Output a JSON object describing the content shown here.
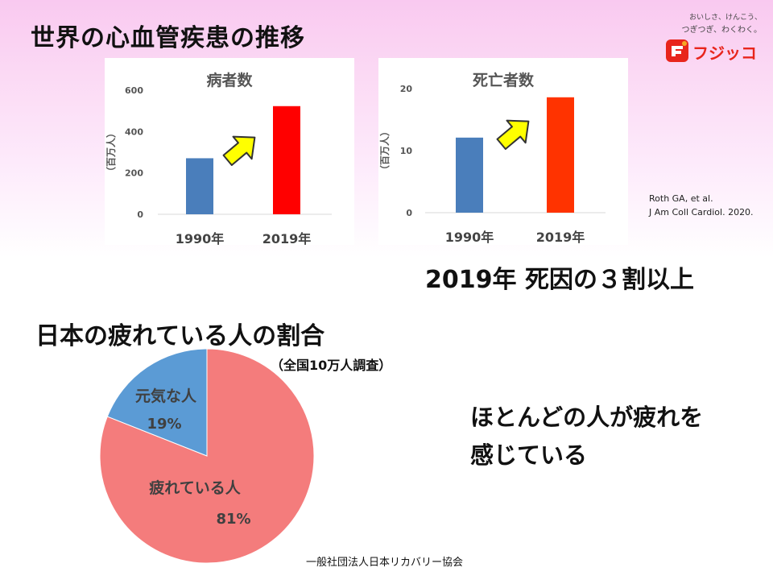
{
  "slide": {
    "title_top": "世界の心血管疾患の推移",
    "statement_top": "2019年  死因の３割以上",
    "title_bottom": "日本の疲れている人の割合",
    "survey_note": "（全国10万人調査）",
    "statement_bottom_line1": "ほとんどの人が疲れを",
    "statement_bottom_line2": "感じている",
    "source": "一般社団法人日本リカバリー協会"
  },
  "logo": {
    "tagline_line1": "おいしさ、けんこう、",
    "tagline_line2": "つぎつぎ、わくわく。",
    "brand": "フジッコ",
    "brand_color": "#e8251c"
  },
  "reference": {
    "line1": "Roth GA, et al.",
    "line2": "J Am Coll Cardiol. 2020."
  },
  "chart_data": [
    {
      "type": "bar",
      "title": "病者数",
      "ylabel": "（百万人）",
      "categories": [
        "1990年",
        "2019年"
      ],
      "values": [
        271,
        523
      ],
      "ylim": [
        0,
        600
      ],
      "yticks": [
        "0",
        "200",
        "400",
        "600"
      ],
      "ytick_values": [
        0,
        200,
        400,
        600
      ],
      "colors": [
        "#4a7ebb",
        "#ff0000"
      ],
      "grid": false,
      "annotation": "yellow-up-arrow"
    },
    {
      "type": "bar",
      "title": "死亡者数",
      "ylabel": "（百万人）",
      "categories": [
        "1990年",
        "2019年"
      ],
      "values": [
        12.1,
        18.6
      ],
      "ylim": [
        0,
        20
      ],
      "yticks": [
        "0",
        "10",
        "20"
      ],
      "ytick_values": [
        0,
        10,
        20
      ],
      "colors": [
        "#4a7ebb",
        "#ff3300"
      ],
      "grid": false,
      "annotation": "yellow-up-arrow"
    },
    {
      "type": "pie",
      "slices": [
        {
          "label": "疲れている人",
          "value": 81,
          "value_label": "81%",
          "color": "#f47c7c"
        },
        {
          "label": "元気な人",
          "value": 19,
          "value_label": "19%",
          "color": "#5b9bd5"
        }
      ]
    }
  ]
}
